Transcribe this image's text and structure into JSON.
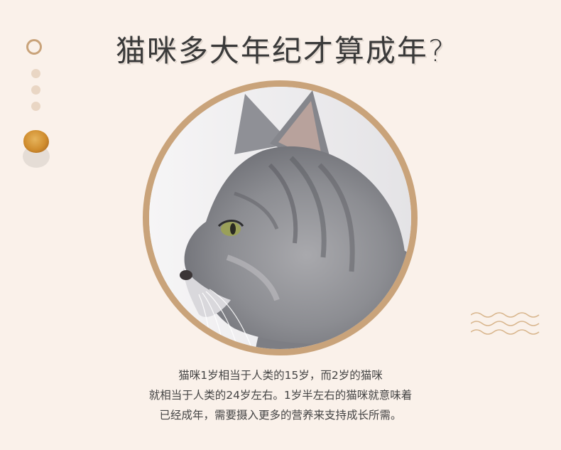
{
  "title": "猫咪多大年纪才算成年?",
  "image": {
    "subject": "cat-profile-photo"
  },
  "description": {
    "lines": [
      "猫咪1岁相当于人类的15岁，而2岁的猫咪",
      "就相当于人类的24岁左右。1岁半左右的猫咪就意味着",
      "已经成年，需要摄入更多的营养来支持成长所需。"
    ]
  },
  "colors": {
    "background": "#faf1ea",
    "accent": "#c9a37a",
    "dot": "#e9d6c4",
    "text": "#444444"
  },
  "icons": [
    "ring-icon",
    "dot-icon",
    "kibble-icon",
    "wave-lines-icon"
  ]
}
